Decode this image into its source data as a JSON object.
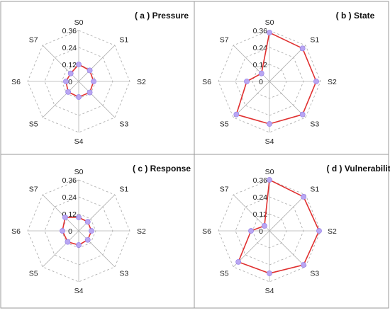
{
  "chart_data": [
    {
      "type": "radar",
      "title": "( a ) Pressure",
      "axes": [
        "S0",
        "S1",
        "S2",
        "S3",
        "S4",
        "S5",
        "S6",
        "S7"
      ],
      "ticks": [
        "0",
        "0.12",
        "0.24",
        "0.36"
      ],
      "rlim": [
        0,
        0.36
      ],
      "grid": true,
      "series": [
        {
          "values": [
            0.12,
            0.11,
            0.105,
            0.11,
            0.11,
            0.105,
            0.09,
            0.08
          ]
        }
      ]
    },
    {
      "type": "radar",
      "title": "( b ) State",
      "axes": [
        "S0",
        "S1",
        "S2",
        "S3",
        "S4",
        "S5",
        "S6",
        "S7"
      ],
      "ticks": [
        "0",
        "0.12",
        "0.24",
        "0.36"
      ],
      "rlim": [
        0,
        0.36
      ],
      "grid": true,
      "series": [
        {
          "values": [
            0.345,
            0.33,
            0.33,
            0.33,
            0.3,
            0.33,
            0.16,
            0.08
          ]
        }
      ]
    },
    {
      "type": "radar",
      "title": "( c ) Response",
      "axes": [
        "S0",
        "S1",
        "S2",
        "S3",
        "S4",
        "S5",
        "S6",
        "S7"
      ],
      "ticks": [
        "0",
        "0.12",
        "0.24",
        "0.36"
      ],
      "rlim": [
        0,
        0.36
      ],
      "grid": true,
      "series": [
        {
          "values": [
            0.095,
            0.09,
            0.09,
            0.09,
            0.1,
            0.11,
            0.115,
            0.135
          ]
        }
      ]
    },
    {
      "type": "radar",
      "title": "( d ) Vulnerability",
      "axes": [
        "S0",
        "S1",
        "S2",
        "S3",
        "S4",
        "S5",
        "S6",
        "S7"
      ],
      "ticks": [
        "0",
        "0.12",
        "0.24",
        "0.36"
      ],
      "rlim": [
        0,
        0.36
      ],
      "grid": true,
      "series": [
        {
          "values": [
            0.36,
            0.34,
            0.35,
            0.34,
            0.3,
            0.31,
            0.13,
            0.05
          ]
        }
      ]
    }
  ]
}
